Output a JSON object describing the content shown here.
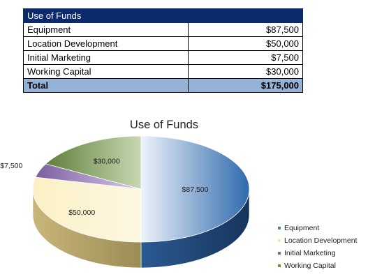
{
  "table": {
    "title": "Use of Funds",
    "rows": [
      {
        "label": "Equipment",
        "amount": "$87,500"
      },
      {
        "label": "Location Development",
        "amount": "$50,000"
      },
      {
        "label": "Initial Marketing",
        "amount": "$7,500"
      },
      {
        "label": "Working Capital",
        "amount": "$30,000"
      }
    ],
    "total": {
      "label": "Total",
      "amount": "$175,000"
    }
  },
  "chart_data": {
    "type": "pie",
    "title": "Use of Funds",
    "categories": [
      "Equipment",
      "Location Development",
      "Initial Marketing",
      "Working Capital"
    ],
    "values": [
      87500,
      50000,
      7500,
      30000
    ],
    "data_labels": [
      "$87,500",
      "$50,000",
      "$7,500",
      "$30,000"
    ],
    "colors": [
      "#4f81bd",
      "#f8e6a8",
      "#8064a2",
      "#77933c"
    ],
    "legend": "right",
    "style": "3d"
  }
}
